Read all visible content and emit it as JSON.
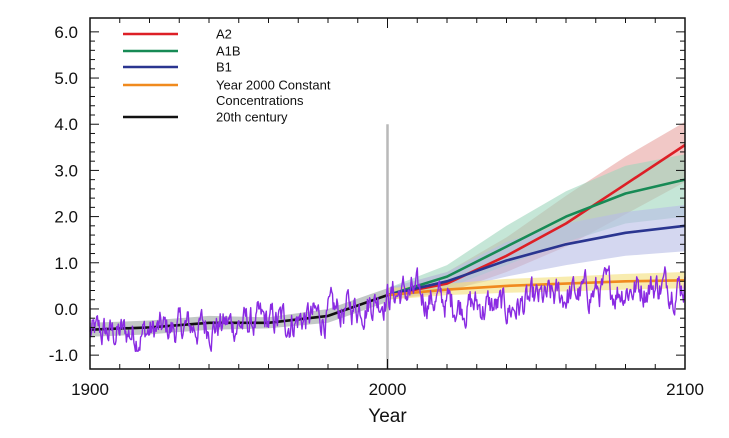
{
  "chart_data": {
    "type": "line",
    "title": "",
    "xlabel": "Year",
    "ylabel": "",
    "xlim": [
      1900,
      2100
    ],
    "ylim": [
      -1.3,
      6.3
    ],
    "x_ticks": [
      "1900",
      "2000",
      "2100"
    ],
    "y_ticks": [
      "-1.0",
      "0.0",
      "1.0",
      "2.0",
      "3.0",
      "4.0",
      "5.0",
      "6.0"
    ],
    "grid": false,
    "legend_placement": "top-left",
    "vertical_marker_x": 2000,
    "legend": [
      {
        "key": "a2",
        "label": "A2",
        "color": "#dd1f26"
      },
      {
        "key": "a1b",
        "label": "A1B",
        "color": "#178a55"
      },
      {
        "key": "b1",
        "label": "B1",
        "color": "#2a3590"
      },
      {
        "key": "const",
        "label": "Year 2000 Constant",
        "label2": "Concentrations",
        "color": "#f08a1e"
      },
      {
        "key": "c20",
        "label": "20th century",
        "color": "#111111"
      }
    ],
    "series": [
      {
        "name": "A2",
        "color": "#dd1f26",
        "band_color": "#e8a3a0",
        "x": [
          2000,
          2020,
          2040,
          2060,
          2080,
          2100
        ],
        "values": [
          0.3,
          0.55,
          1.15,
          1.85,
          2.7,
          3.55
        ],
        "lower": [
          0.2,
          0.35,
          0.8,
          1.35,
          2.05,
          2.75
        ],
        "upper": [
          0.45,
          0.8,
          1.55,
          2.45,
          3.3,
          4.05
        ]
      },
      {
        "name": "A1B",
        "color": "#178a55",
        "band_color": "#9fd6bd",
        "x": [
          2000,
          2020,
          2040,
          2060,
          2080,
          2100
        ],
        "values": [
          0.3,
          0.7,
          1.35,
          2.0,
          2.5,
          2.8
        ],
        "lower": [
          0.2,
          0.45,
          0.95,
          1.45,
          1.85,
          2.0
        ],
        "upper": [
          0.45,
          0.95,
          1.8,
          2.55,
          3.1,
          3.35
        ]
      },
      {
        "name": "B1",
        "color": "#2a3590",
        "band_color": "#b8bce6",
        "x": [
          2000,
          2020,
          2040,
          2060,
          2080,
          2100
        ],
        "values": [
          0.3,
          0.6,
          1.05,
          1.4,
          1.65,
          1.8
        ],
        "lower": [
          0.2,
          0.4,
          0.7,
          0.95,
          1.15,
          1.25
        ],
        "upper": [
          0.45,
          0.8,
          1.45,
          1.85,
          2.1,
          2.25
        ]
      },
      {
        "name": "Year 2000 Constant Concentrations",
        "color": "#f08a1e",
        "band_color": "#f4e07a",
        "x": [
          2000,
          2020,
          2040,
          2060,
          2080,
          2100
        ],
        "values": [
          0.3,
          0.42,
          0.5,
          0.55,
          0.6,
          0.62
        ],
        "lower": [
          0.2,
          0.3,
          0.35,
          0.38,
          0.42,
          0.45
        ],
        "upper": [
          0.45,
          0.55,
          0.65,
          0.7,
          0.76,
          0.8
        ]
      },
      {
        "name": "20th century",
        "color": "#111111",
        "band_color": "#9aa3a0",
        "x": [
          1900,
          1920,
          1940,
          1960,
          1980,
          2000
        ],
        "values": [
          -0.45,
          -0.4,
          -0.3,
          -0.3,
          -0.15,
          0.3
        ],
        "lower": [
          -0.6,
          -0.55,
          -0.45,
          -0.42,
          -0.3,
          0.15
        ],
        "upper": [
          -0.3,
          -0.25,
          -0.15,
          -0.18,
          0.0,
          0.45
        ]
      }
    ],
    "noise_series": {
      "color": "#8a2be2",
      "x": [
        1900,
        1920,
        1940,
        1960,
        1980,
        2000,
        2005,
        2020,
        2040,
        2060,
        2080,
        2100
      ],
      "values": [
        -0.55,
        -0.5,
        -0.35,
        -0.3,
        -0.15,
        0.3,
        0.35,
        0.15,
        0.0,
        0.3,
        0.45,
        0.55
      ]
    }
  }
}
